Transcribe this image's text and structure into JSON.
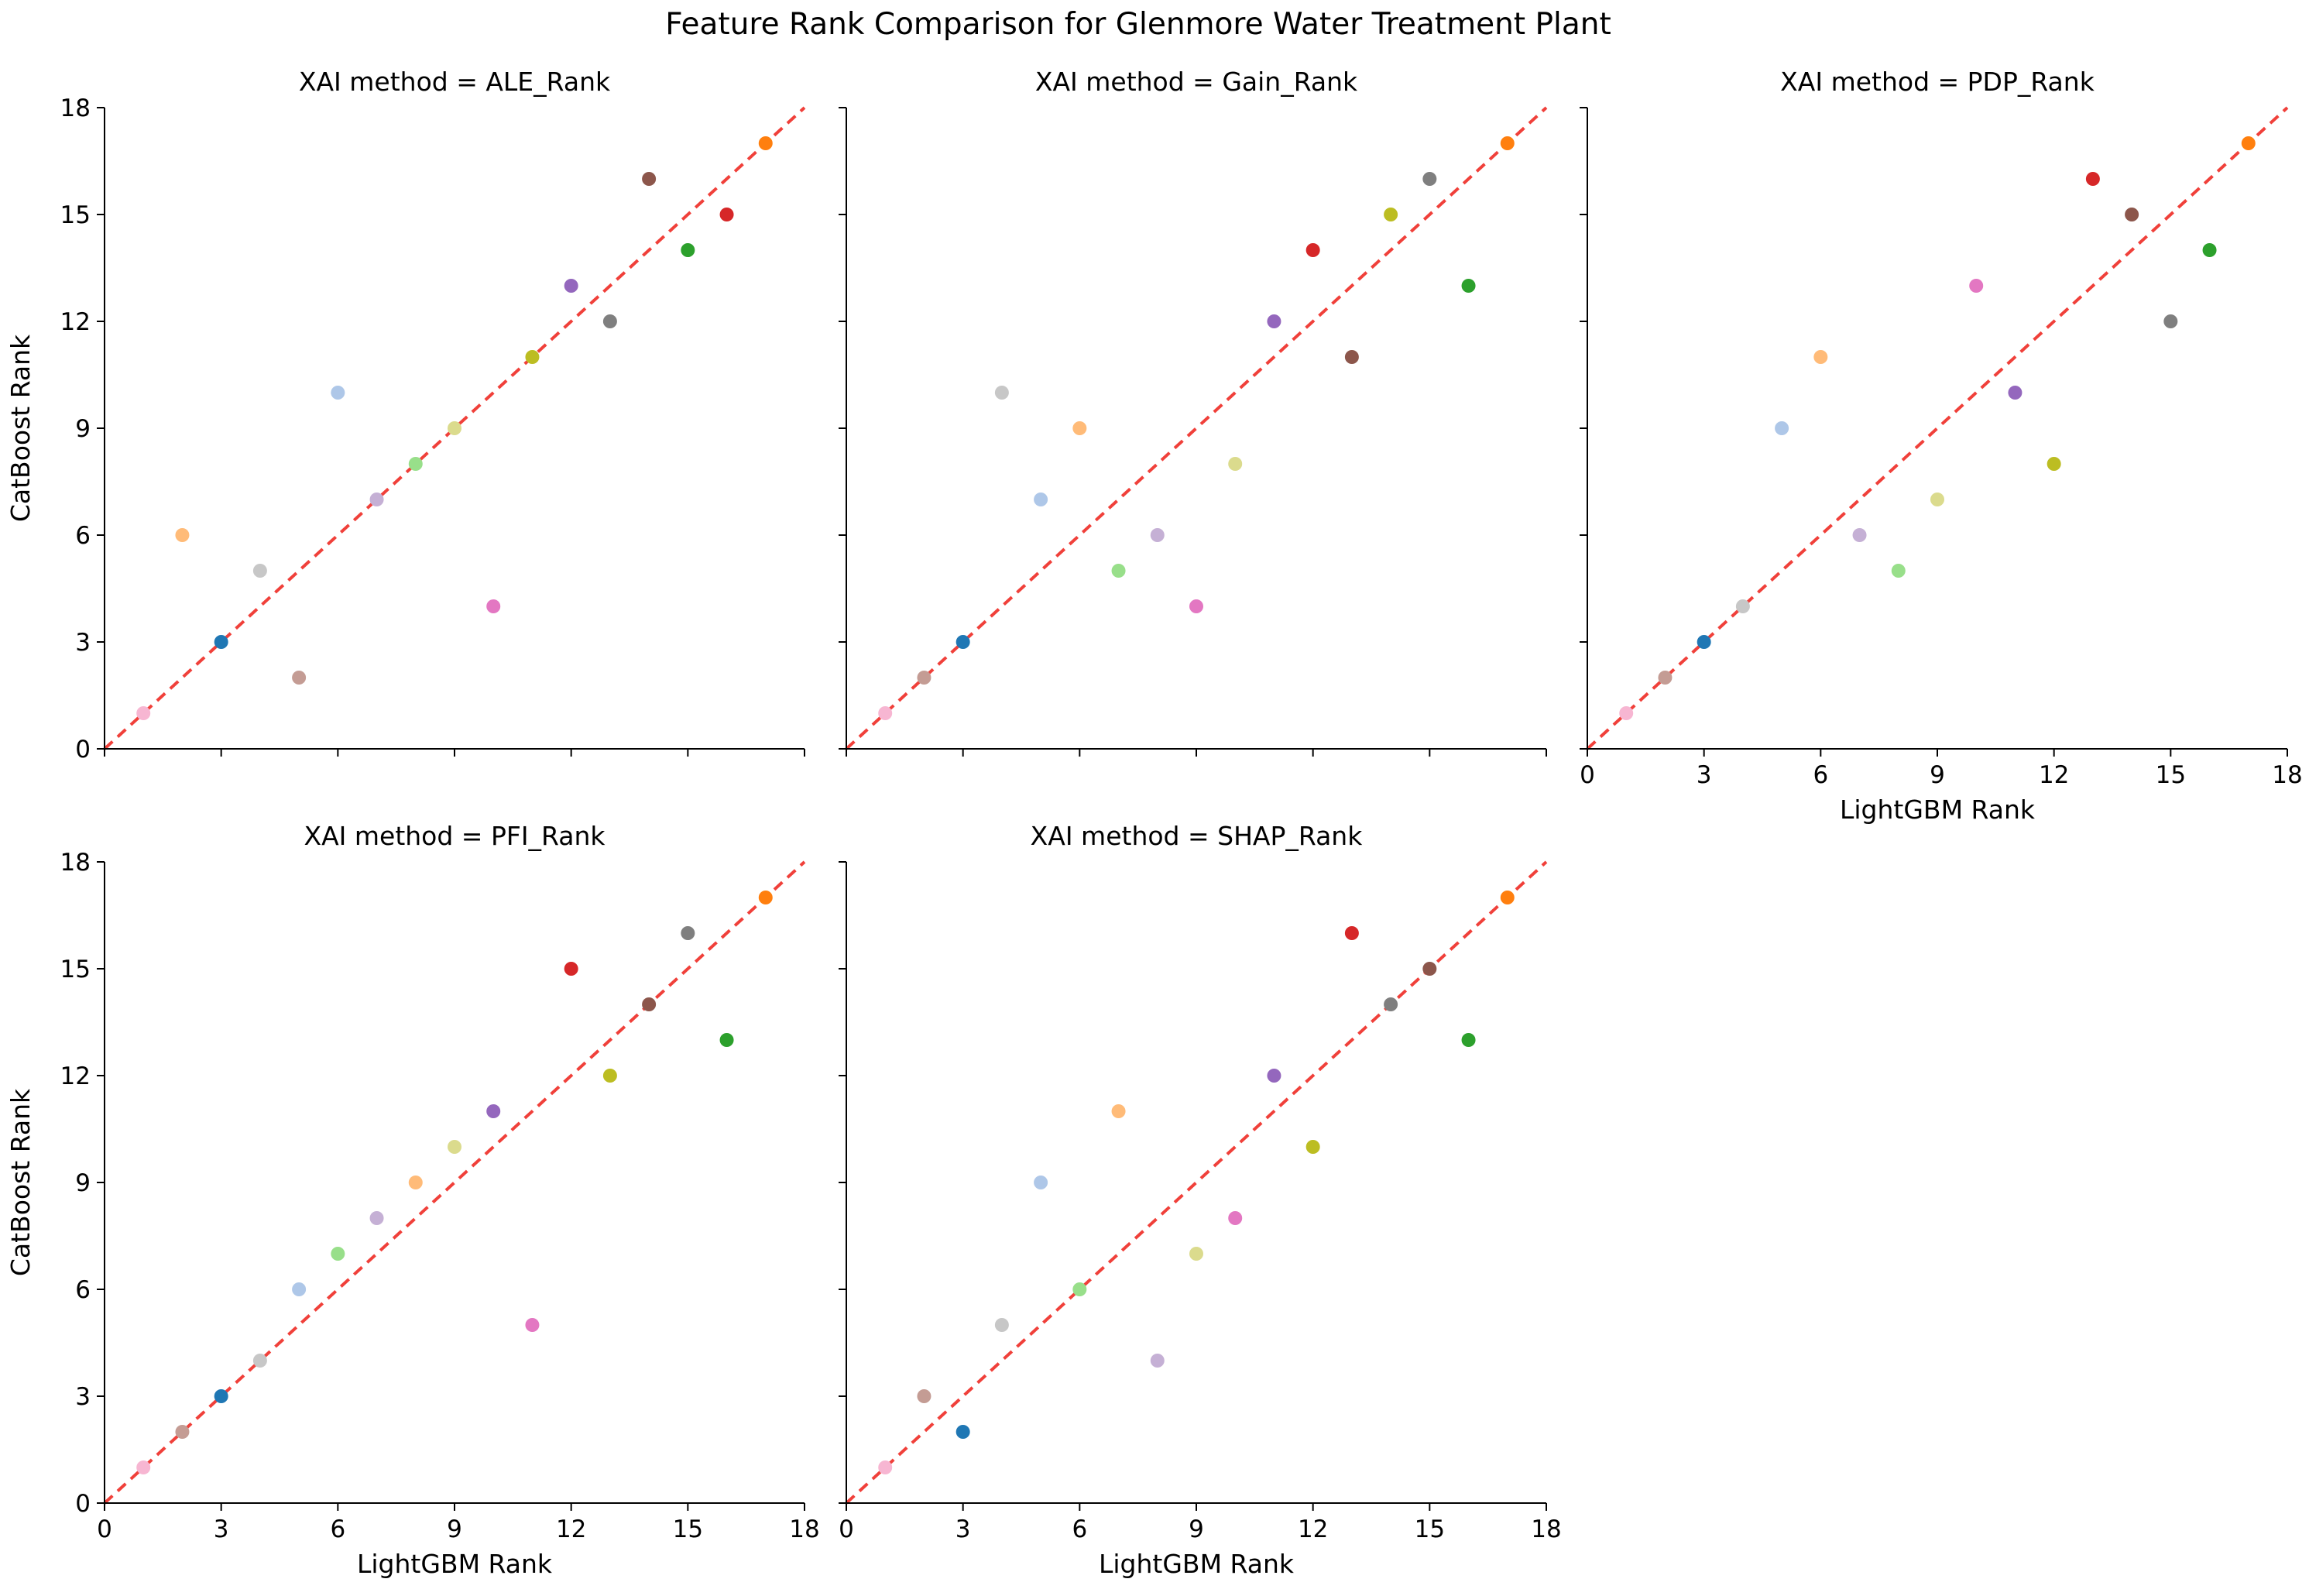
{
  "title": "Feature Rank Comparison for Glenmore Water Treatment Plant",
  "x_axis_label": "LightGBM Rank",
  "y_axis_label": "CatBoost Rank",
  "ticks": [
    0,
    3,
    6,
    9,
    12,
    15,
    18
  ],
  "colors": {
    "reference_line": "#f0403a",
    "palette": [
      "#f7b6d2",
      "#c49c94",
      "#1f77b4",
      "#c7c7c7",
      "#aec7e8",
      "#ffbb78",
      "#98df8a",
      "#c5b0d5",
      "#dbdb8d",
      "#e377c2",
      "#bcbd22",
      "#9467bd",
      "#7f7f7f",
      "#2ca02c",
      "#d62728",
      "#8c564b",
      "#ff7f0e"
    ]
  },
  "chart_data": [
    {
      "type": "scatter",
      "title": "XAI method = ALE_Rank",
      "xlabel": "",
      "ylabel": "CatBoost Rank",
      "xlim": [
        0,
        18
      ],
      "ylim": [
        0,
        18
      ],
      "grid": false,
      "reference_line": "y = x",
      "points": [
        [
          1,
          1,
          0
        ],
        [
          2,
          6,
          5
        ],
        [
          3,
          3,
          2
        ],
        [
          4,
          5,
          3
        ],
        [
          5,
          2,
          1
        ],
        [
          6,
          10,
          4
        ],
        [
          7,
          7,
          7
        ],
        [
          8,
          8,
          6
        ],
        [
          9,
          9,
          8
        ],
        [
          10,
          4,
          9
        ],
        [
          11,
          11,
          10
        ],
        [
          12,
          13,
          11
        ],
        [
          13,
          12,
          12
        ],
        [
          14,
          16,
          15
        ],
        [
          15,
          14,
          13
        ],
        [
          16,
          15,
          14
        ],
        [
          17,
          17,
          16
        ]
      ]
    },
    {
      "type": "scatter",
      "title": "XAI method = Gain_Rank",
      "xlabel": "",
      "ylabel": "",
      "xlim": [
        0,
        18
      ],
      "ylim": [
        0,
        18
      ],
      "grid": false,
      "reference_line": "y = x",
      "points": [
        [
          1,
          1,
          0
        ],
        [
          2,
          2,
          1
        ],
        [
          3,
          3,
          2
        ],
        [
          4,
          10,
          3
        ],
        [
          5,
          7,
          4
        ],
        [
          6,
          9,
          5
        ],
        [
          7,
          5,
          6
        ],
        [
          8,
          6,
          7
        ],
        [
          9,
          4,
          9
        ],
        [
          10,
          8,
          8
        ],
        [
          11,
          12,
          11
        ],
        [
          12,
          14,
          14
        ],
        [
          13,
          11,
          15
        ],
        [
          14,
          15,
          10
        ],
        [
          15,
          16,
          12
        ],
        [
          16,
          13,
          13
        ],
        [
          17,
          17,
          16
        ]
      ]
    },
    {
      "type": "scatter",
      "title": "XAI method = PDP_Rank",
      "xlabel": "LightGBM Rank",
      "ylabel": "",
      "xlim": [
        0,
        18
      ],
      "ylim": [
        0,
        18
      ],
      "grid": false,
      "reference_line": "y = x",
      "points": [
        [
          1,
          1,
          0
        ],
        [
          2,
          2,
          1
        ],
        [
          3,
          3,
          2
        ],
        [
          4,
          4,
          3
        ],
        [
          5,
          9,
          4
        ],
        [
          6,
          11,
          5
        ],
        [
          7,
          6,
          7
        ],
        [
          8,
          5,
          6
        ],
        [
          9,
          7,
          8
        ],
        [
          10,
          13,
          9
        ],
        [
          11,
          10,
          11
        ],
        [
          12,
          8,
          10
        ],
        [
          13,
          16,
          14
        ],
        [
          14,
          15,
          15
        ],
        [
          15,
          12,
          12
        ],
        [
          16,
          14,
          13
        ],
        [
          17,
          17,
          16
        ]
      ]
    },
    {
      "type": "scatter",
      "title": "XAI method = PFI_Rank",
      "xlabel": "LightGBM Rank",
      "ylabel": "CatBoost Rank",
      "xlim": [
        0,
        18
      ],
      "ylim": [
        0,
        18
      ],
      "grid": false,
      "reference_line": "y = x",
      "points": [
        [
          1,
          1,
          0
        ],
        [
          2,
          2,
          1
        ],
        [
          3,
          3,
          2
        ],
        [
          4,
          4,
          3
        ],
        [
          5,
          6,
          4
        ],
        [
          6,
          7,
          6
        ],
        [
          7,
          8,
          7
        ],
        [
          8,
          9,
          5
        ],
        [
          9,
          10,
          8
        ],
        [
          10,
          11,
          11
        ],
        [
          11,
          5,
          9
        ],
        [
          12,
          15,
          14
        ],
        [
          13,
          12,
          10
        ],
        [
          14,
          14,
          15
        ],
        [
          15,
          16,
          12
        ],
        [
          16,
          13,
          13
        ],
        [
          17,
          17,
          16
        ]
      ]
    },
    {
      "type": "scatter",
      "title": "XAI method = SHAP_Rank",
      "xlabel": "LightGBM Rank",
      "ylabel": "",
      "xlim": [
        0,
        18
      ],
      "ylim": [
        0,
        18
      ],
      "grid": false,
      "reference_line": "y = x",
      "points": [
        [
          1,
          1,
          0
        ],
        [
          2,
          3,
          1
        ],
        [
          3,
          2,
          2
        ],
        [
          4,
          5,
          3
        ],
        [
          5,
          9,
          4
        ],
        [
          6,
          6,
          6
        ],
        [
          7,
          11,
          5
        ],
        [
          8,
          4,
          7
        ],
        [
          9,
          7,
          8
        ],
        [
          10,
          8,
          9
        ],
        [
          11,
          12,
          11
        ],
        [
          12,
          10,
          10
        ],
        [
          13,
          16,
          14
        ],
        [
          14,
          14,
          12
        ],
        [
          15,
          15,
          15
        ],
        [
          16,
          13,
          13
        ],
        [
          17,
          17,
          16
        ]
      ]
    }
  ]
}
